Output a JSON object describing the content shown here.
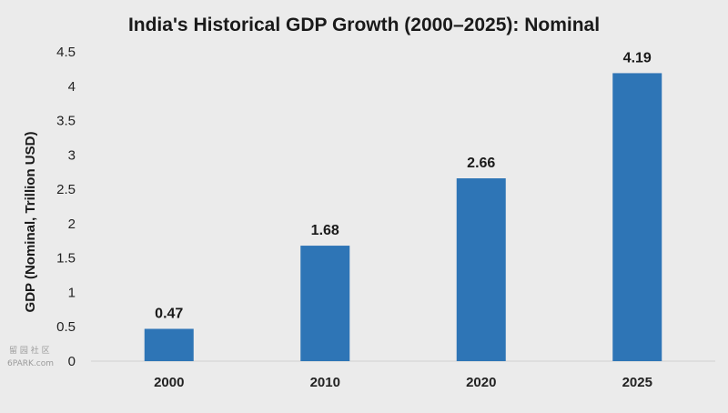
{
  "chart_data": {
    "type": "bar",
    "title": "India's Historical GDP Growth (2000–2025): Nominal",
    "xlabel": "",
    "ylabel": "GDP (Nominal, Trillion USD)",
    "categories": [
      "2000",
      "2010",
      "2020",
      "2025"
    ],
    "values": [
      0.47,
      1.68,
      2.66,
      4.19
    ],
    "value_labels": [
      "0.47",
      "1.68",
      "2.66",
      "4.19"
    ],
    "ylim": [
      0,
      4.5
    ],
    "yticks": [
      "0",
      "0.5",
      "1",
      "1.5",
      "2",
      "2.5",
      "3",
      "3.5",
      "4",
      "4.5"
    ],
    "grid": false,
    "legend": "none",
    "bar_color": "#2e75b6",
    "background": "#ebebeb"
  },
  "watermark": {
    "line1": "留 园 社 区",
    "line2": "6PARK.com"
  }
}
